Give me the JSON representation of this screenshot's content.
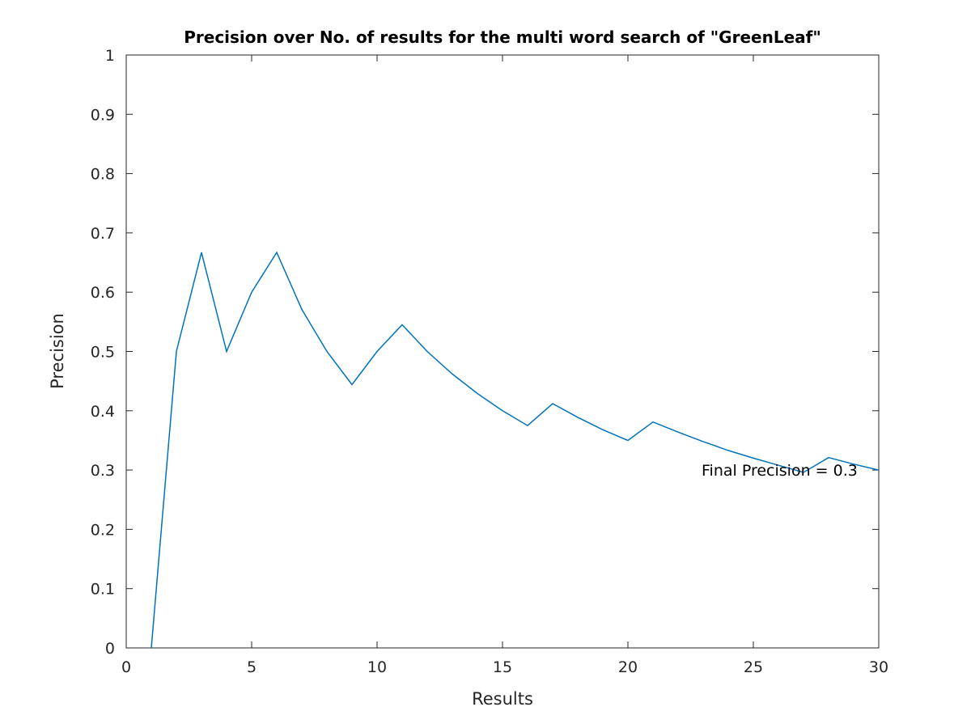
{
  "chart_data": {
    "type": "line",
    "title": "Precision over No. of results for the multi word search of \"GreenLeaf\"",
    "xlabel": "Results",
    "ylabel": "Precision",
    "xlim": [
      0,
      30
    ],
    "ylim": [
      0,
      1
    ],
    "xticks": [
      0,
      5,
      10,
      15,
      20,
      25,
      30
    ],
    "yticks": [
      0,
      0.1,
      0.2,
      0.3,
      0.4,
      0.5,
      0.6,
      0.7,
      0.8,
      0.9,
      1
    ],
    "xtick_labels": [
      "0",
      "5",
      "10",
      "15",
      "20",
      "25",
      "30"
    ],
    "ytick_labels": [
      "0",
      "0.1",
      "0.2",
      "0.3",
      "0.4",
      "0.5",
      "0.6",
      "0.7",
      "0.8",
      "0.9",
      "1"
    ],
    "grid": false,
    "line_color": "#0072bd",
    "series": [
      {
        "x": [
          1,
          2,
          3,
          4,
          5,
          6,
          7,
          8,
          9,
          10,
          11,
          12,
          13,
          14,
          15,
          16,
          17,
          18,
          19,
          20,
          21,
          22,
          23,
          24,
          25,
          26,
          27,
          28,
          29,
          30
        ],
        "values": [
          0,
          0.5,
          0.667,
          0.5,
          0.6,
          0.667,
          0.571,
          0.5,
          0.444,
          0.5,
          0.545,
          0.5,
          0.462,
          0.429,
          0.4,
          0.375,
          0.412,
          0.389,
          0.368,
          0.35,
          0.381,
          0.364,
          0.348,
          0.333,
          0.32,
          0.308,
          0.296,
          0.321,
          0.31,
          0.3
        ]
      }
    ],
    "annotations": [
      {
        "text": "Final Precision = 0.3",
        "x": 23,
        "y": 0.3
      }
    ]
  }
}
